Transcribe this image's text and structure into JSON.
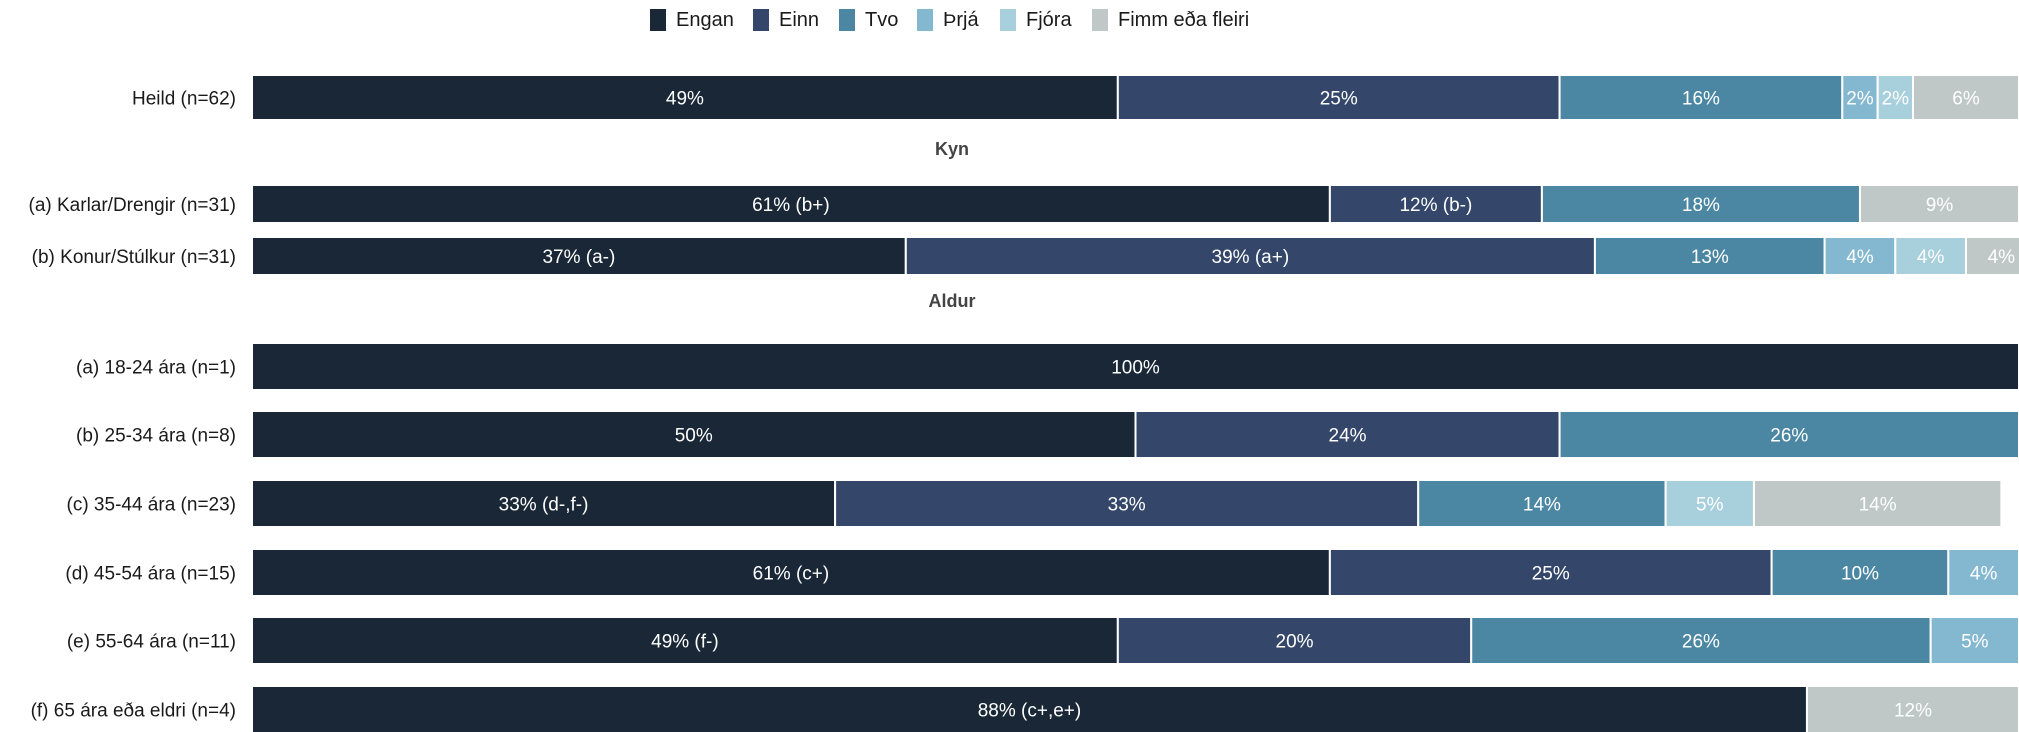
{
  "chart_data": {
    "type": "bar",
    "orientation": "horizontal",
    "stacked": true,
    "xlim": [
      0,
      100
    ],
    "legend_position": "top",
    "series": [
      {
        "name": "Engan",
        "color": "#192736"
      },
      {
        "name": "Einn",
        "color": "#34476a"
      },
      {
        "name": "Tvo",
        "color": "#4b87a3"
      },
      {
        "name": "Þrjá",
        "color": "#84b8d0"
      },
      {
        "name": "Fjóra",
        "color": "#a8cfdc"
      },
      {
        "name": "Fimm eða fleiri",
        "color": "#bfc7c7"
      }
    ],
    "rows": [
      {
        "kind": "bar",
        "label": "Heild (n=62)",
        "values": [
          49,
          25,
          16,
          2,
          2,
          6
        ],
        "labels": [
          "49%",
          "25%",
          "16%",
          "2%",
          "2%",
          "6%"
        ]
      },
      {
        "kind": "group",
        "label": "Kyn"
      },
      {
        "kind": "bar",
        "label": "(a) Karlar/Drengir (n=31)",
        "values": [
          61,
          12,
          18,
          0,
          0,
          9
        ],
        "labels": [
          "61% (b+)",
          "12% (b-)",
          "18%",
          "",
          "",
          "9%"
        ]
      },
      {
        "kind": "bar",
        "label": "(b) Konur/Stúlkur (n=31)",
        "values": [
          37,
          39,
          13,
          4,
          4,
          4
        ],
        "labels": [
          "37% (a-)",
          "39% (a+)",
          "13%",
          "4%",
          "4%",
          "4%"
        ]
      },
      {
        "kind": "group",
        "label": "Aldur"
      },
      {
        "kind": "bar",
        "label": "(a) 18-24 ára (n=1)",
        "values": [
          100,
          0,
          0,
          0,
          0,
          0
        ],
        "labels": [
          "100%",
          "",
          "",
          "",
          "",
          ""
        ]
      },
      {
        "kind": "bar",
        "label": "(b) 25-34 ára (n=8)",
        "values": [
          50,
          24,
          26,
          0,
          0,
          0
        ],
        "labels": [
          "50%",
          "24%",
          "26%",
          "",
          "",
          ""
        ]
      },
      {
        "kind": "bar",
        "label": "(c) 35-44 ára (n=23)",
        "values": [
          33,
          33,
          14,
          0,
          5,
          14
        ],
        "labels": [
          "33% (d-,f-)",
          "33%",
          "14%",
          "",
          "5%",
          "14%"
        ]
      },
      {
        "kind": "bar",
        "label": "(d) 45-54 ára (n=15)",
        "values": [
          61,
          25,
          10,
          4,
          0,
          0
        ],
        "labels": [
          "61% (c+)",
          "25%",
          "10%",
          "4%",
          "",
          ""
        ]
      },
      {
        "kind": "bar",
        "label": "(e) 55-64 ára (n=11)",
        "values": [
          49,
          20,
          26,
          5,
          0,
          0
        ],
        "labels": [
          "49% (f-)",
          "20%",
          "26%",
          "5%",
          "",
          ""
        ]
      },
      {
        "kind": "bar",
        "label": "(f) 65 ára eða eldri (n=4)",
        "values": [
          88,
          0,
          0,
          0,
          0,
          12
        ],
        "labels": [
          "88% (c+,e+)",
          "",
          "",
          "",
          "",
          "12%"
        ]
      }
    ]
  }
}
